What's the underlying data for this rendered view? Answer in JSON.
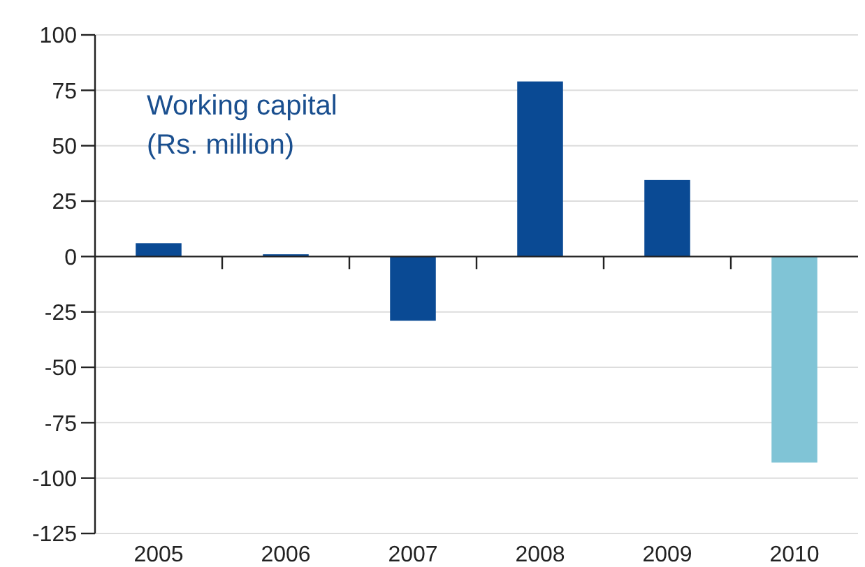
{
  "chart_data": {
    "type": "bar",
    "title": "Working capital",
    "subtitle": "(Rs. million)",
    "categories": [
      "2005",
      "2006",
      "2007",
      "2008",
      "2009",
      "2010"
    ],
    "values": [
      6,
      1,
      -29,
      79,
      34.5,
      -93
    ],
    "colors": [
      "#0a4a94",
      "#0a4a94",
      "#0a4a94",
      "#0a4a94",
      "#0a4a94",
      "#80c4d6"
    ],
    "ylim": [
      -125,
      100
    ],
    "yticks": [
      -125,
      -100,
      -75,
      -50,
      -25,
      0,
      25,
      50,
      75,
      100
    ],
    "grid": "y"
  }
}
